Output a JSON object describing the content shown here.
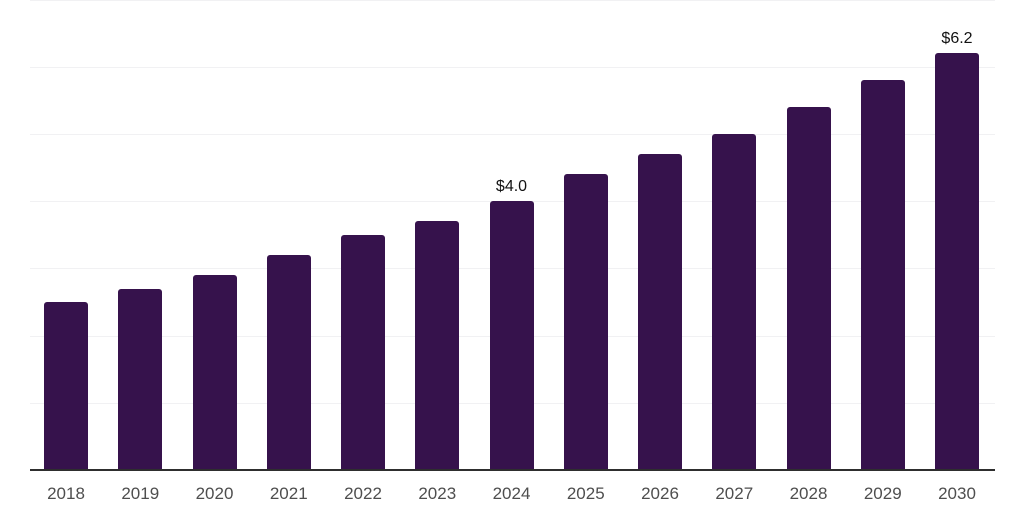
{
  "chart_data": {
    "type": "bar",
    "title": "",
    "xlabel": "",
    "ylabel": "",
    "categories": [
      "2018",
      "2019",
      "2020",
      "2021",
      "2022",
      "2023",
      "2024",
      "2025",
      "2026",
      "2027",
      "2028",
      "2029",
      "2030"
    ],
    "values": [
      2.5,
      2.7,
      2.9,
      3.2,
      3.5,
      3.7,
      4.0,
      4.4,
      4.7,
      5.0,
      5.4,
      5.8,
      6.2
    ],
    "data_labels": [
      "",
      "",
      "",
      "",
      "",
      "",
      "$4.0",
      "",
      "",
      "",
      "",
      "",
      "$6.2"
    ],
    "ylim": [
      0,
      7
    ],
    "gridline_interval": 1,
    "grid": "horizontal",
    "legend": "none",
    "colors": {
      "bar": "#36124c",
      "gridline": "#f1f1f3",
      "axis_line": "#2e2e2e",
      "tick_label": "#4e4e4e",
      "value_label": "#121212",
      "background": "#ffffff"
    }
  }
}
